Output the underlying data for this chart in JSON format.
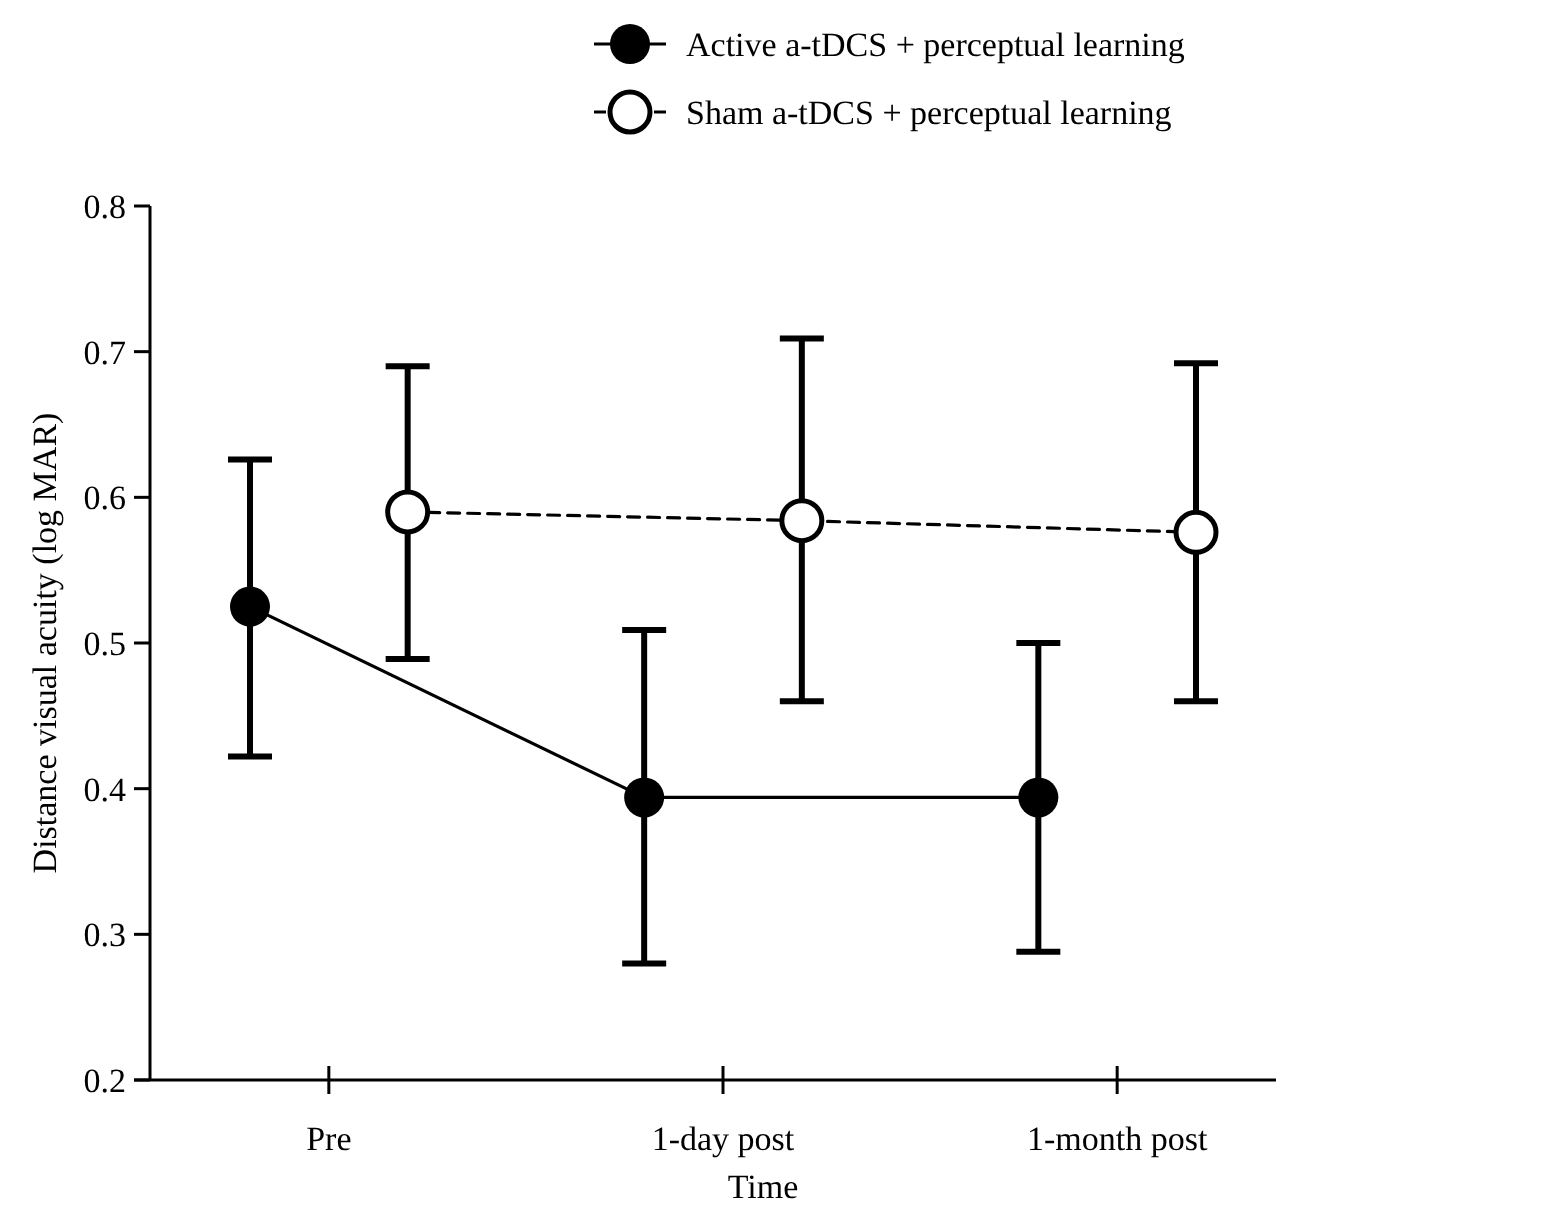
{
  "chart_data": {
    "type": "line",
    "xlabel": "Time",
    "ylabel": "Distance visual acuity (log MAR)",
    "categories": [
      null,
      "Pre",
      null,
      null,
      null,
      null,
      "1-day post",
      null,
      null,
      null,
      null,
      "1-month post",
      null
    ],
    "series": [
      {
        "name": "Active a-tDCS + perceptual learning",
        "color": "#000000",
        "line_style": "solid",
        "values": [
          0.525,
          null,
          null,
          null,
          null,
          0.394,
          null,
          null,
          null,
          null,
          0.394,
          null,
          null
        ],
        "errors": [
          [
            0.422,
            0.626
          ],
          null,
          null,
          null,
          null,
          [
            0.28,
            0.509
          ],
          null,
          null,
          null,
          null,
          [
            0.288,
            0.5
          ],
          null,
          null
        ]
      },
      {
        "name": "Sham a-tDCS + perceptual learning",
        "color": "#000000",
        "line_style": "dashed",
        "values": [
          null,
          null,
          0.59,
          null,
          null,
          null,
          null,
          0.584,
          null,
          null,
          null,
          null,
          0.576
        ],
        "errors": [
          null,
          null,
          [
            0.489,
            0.69
          ],
          null,
          null,
          null,
          null,
          [
            0.46,
            0.709
          ],
          null,
          null,
          null,
          null,
          [
            0.46,
            0.692
          ]
        ]
      }
    ],
    "ylim": [
      0.2,
      0.8
    ],
    "yticks": [
      0.2,
      0.3,
      0.4,
      0.5,
      0.6,
      0.7,
      0.8
    ],
    "marker": "circle",
    "legend": "top right",
    "grid": false
  }
}
